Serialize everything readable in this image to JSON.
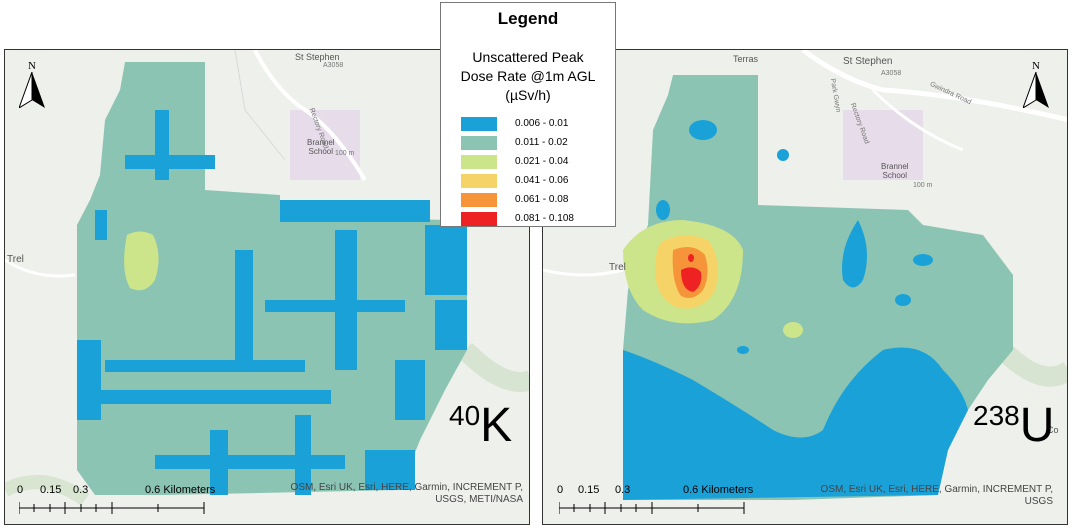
{
  "legend": {
    "title": "Legend",
    "subtitle_lines": [
      "Unscattered Peak",
      "Dose Rate @1m AGL",
      "(µSv/h)"
    ],
    "classes": [
      {
        "range": "0.006 - 0.01",
        "color": "#1aa1d8"
      },
      {
        "range": "0.011 - 0.02",
        "color": "#8cc4b4"
      },
      {
        "range": "0.021 - 0.04",
        "color": "#cde58a"
      },
      {
        "range": "0.041 - 0.06",
        "color": "#f6d366"
      },
      {
        "range": "0.061 - 0.08",
        "color": "#f6943a"
      },
      {
        "range": "0.081 - 0.108",
        "color": "#ee2222"
      }
    ]
  },
  "north_arrow": {
    "letter": "N",
    "icon": "north-arrow-icon"
  },
  "scale_bar": {
    "ticks": [
      "0",
      "0.15",
      "0.3"
    ],
    "end_label": "0.6 Kilometers"
  },
  "map_labels": {
    "st_stephen": "St Stephen",
    "st_stephen_top": "St Stephen",
    "terras": "Terras",
    "road_a3058": "A3058",
    "gwindra_road": "Gwindra Road",
    "rectory_road": "Rectory Road",
    "park_gwyn": "Park Gwyn",
    "school_line1": "Brannel",
    "school_line2": "School",
    "contour": "100 m",
    "trel": "Trel",
    "coom": "Coom",
    "co": "Co"
  },
  "panels": {
    "left": {
      "isotope_mass": "40",
      "isotope_symbol": "K",
      "attribution_lines": [
        "OSM, Esri UK, Esri, HERE, Garmin, INCREMENT P,",
        "USGS, METI/NASA"
      ]
    },
    "right": {
      "isotope_mass": "238",
      "isotope_symbol": "U",
      "attribution_lines": [
        "OSM, Esri UK, Esri, HERE, Garmin, INCREMENT P,",
        "USGS"
      ]
    }
  }
}
